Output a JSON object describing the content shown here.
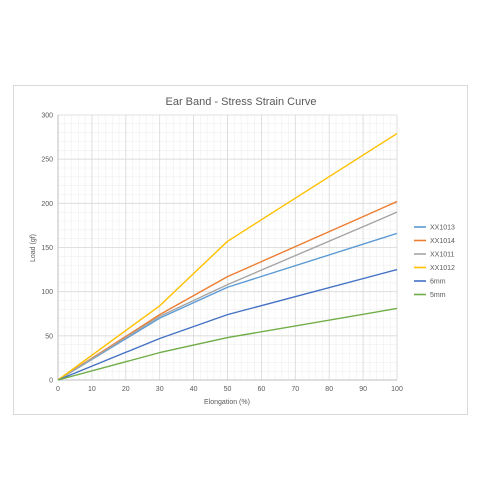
{
  "chart_data": {
    "type": "line",
    "title": "Ear Band - Stress Strain Curve",
    "xlabel": "Elongation (%)",
    "ylabel": "Load (gf)",
    "x": [
      0,
      30,
      50,
      100
    ],
    "xlim": [
      0,
      100
    ],
    "ylim": [
      0,
      300
    ],
    "x_ticks": [
      0,
      10,
      20,
      30,
      40,
      50,
      60,
      70,
      80,
      90,
      100
    ],
    "y_ticks": [
      0,
      50,
      100,
      150,
      200,
      250,
      300
    ],
    "grid": true,
    "legend_position": "right",
    "series": [
      {
        "name": "XX1013",
        "color": "#5b9bd5",
        "values": [
          0,
          70,
          105,
          166
        ]
      },
      {
        "name": "XX1014",
        "color": "#ed7d31",
        "values": [
          0,
          74,
          117,
          202
        ]
      },
      {
        "name": "XX1011",
        "color": "#a5a5a5",
        "values": [
          0,
          72,
          108,
          190
        ]
      },
      {
        "name": "XX1012",
        "color": "#ffc000",
        "values": [
          0,
          84,
          157,
          279
        ]
      },
      {
        "name": "6mm",
        "color": "#4472c4",
        "values": [
          0,
          47,
          74,
          125
        ]
      },
      {
        "name": "5mm",
        "color": "#70ad47",
        "values": [
          0,
          31,
          48,
          81
        ]
      }
    ]
  }
}
